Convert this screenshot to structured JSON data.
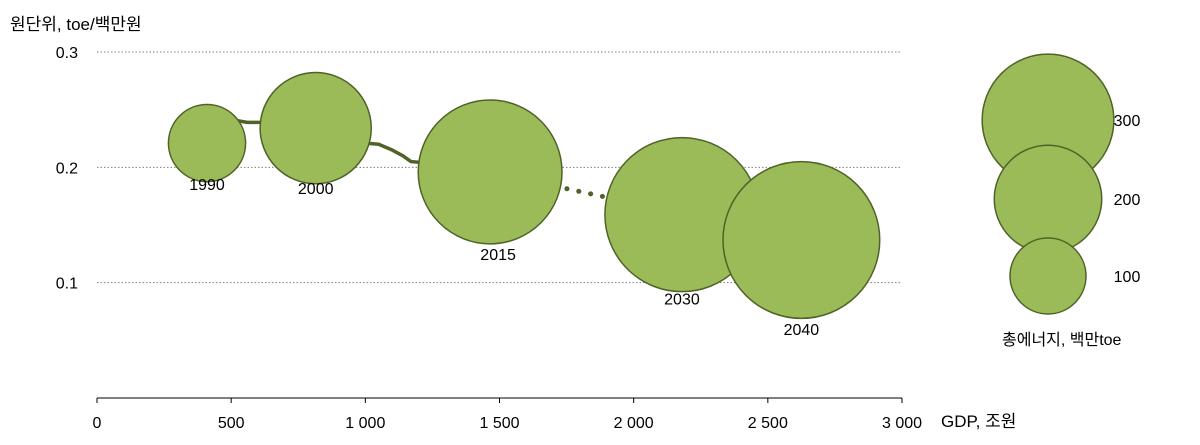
{
  "chart_data": {
    "type": "scatter",
    "subtype": "bubble",
    "ylabel": "원단위, toe/백만원",
    "xlabel": "GDP, 조원",
    "xlim": [
      0,
      3000
    ],
    "ylim": [
      0.0,
      0.3
    ],
    "x_ticks": [
      {
        "value": 0,
        "label": "0"
      },
      {
        "value": 500,
        "label": "500"
      },
      {
        "value": 1000,
        "label": "1 000"
      },
      {
        "value": 1500,
        "label": "1 500"
      },
      {
        "value": 2000,
        "label": "2 000"
      },
      {
        "value": 2500,
        "label": "2 500"
      },
      {
        "value": 3000,
        "label": "3 000"
      }
    ],
    "y_ticks": [
      {
        "value": 0.1,
        "label": "0.1"
      },
      {
        "value": 0.2,
        "label": "0.2"
      },
      {
        "value": 0.3,
        "label": "0.3"
      }
    ],
    "gridlines": "horizontal-dotted",
    "colors": {
      "bubble_fill": "#9bbb59",
      "bubble_stroke": "#4f6228",
      "line": "#4f6228"
    },
    "historical_line": {
      "x": [
        405,
        440,
        475,
        510,
        560,
        620,
        680,
        720,
        760,
        830,
        900,
        950,
        1000,
        1050,
        1100,
        1140,
        1170,
        1220,
        1270,
        1320,
        1360,
        1410,
        1460
      ],
      "y": [
        0.22,
        0.228,
        0.236,
        0.241,
        0.239,
        0.239,
        0.245,
        0.242,
        0.243,
        0.236,
        0.228,
        0.225,
        0.221,
        0.22,
        0.215,
        0.21,
        0.205,
        0.204,
        0.206,
        0.209,
        0.209,
        0.204,
        0.196
      ]
    },
    "tail_line": {
      "x": [
        690,
        715
      ],
      "y": [
        0.243,
        0.252
      ]
    },
    "projection_line": {
      "x": [
        1620,
        1680,
        1740,
        1800,
        1860,
        1920,
        1980,
        2030,
        2400,
        2440
      ],
      "y": [
        0.189,
        0.186,
        0.182,
        0.179,
        0.176,
        0.173,
        0.17,
        0.167,
        0.149,
        0.147
      ]
    },
    "bubbles": [
      {
        "label": "1990",
        "x": 410,
        "y": 0.221,
        "size": 93
      },
      {
        "label": "2000",
        "x": 815,
        "y": 0.234,
        "size": 193
      },
      {
        "label": "2015",
        "x": 1465,
        "y": 0.196,
        "size": 323
      },
      {
        "label": "2030",
        "x": 2180,
        "y": 0.159,
        "size": 371
      },
      {
        "label": "2040",
        "x": 2625,
        "y": 0.137,
        "size": 384
      }
    ],
    "size_legend": {
      "title": "총에너지, 백만toe",
      "items": [
        {
          "label": "300",
          "size": 300
        },
        {
          "label": "200",
          "size": 200
        },
        {
          "label": "100",
          "size": 100
        }
      ]
    }
  }
}
